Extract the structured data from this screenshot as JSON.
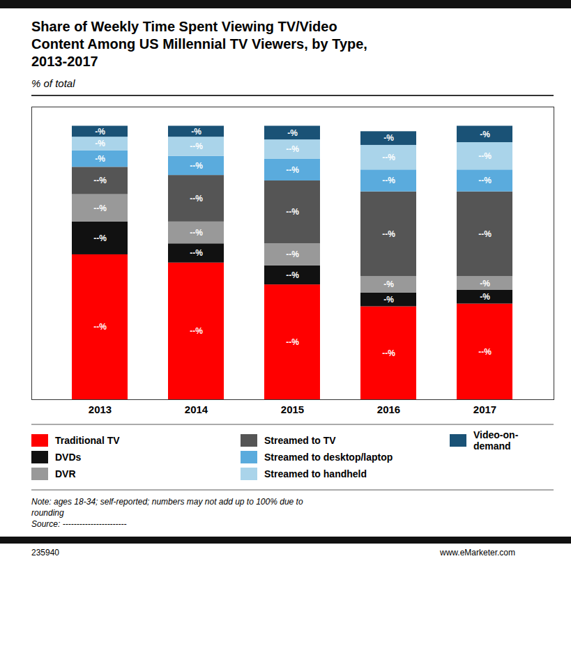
{
  "chart_data": {
    "type": "bar",
    "stacked": true,
    "title": "Share of Weekly Time Spent Viewing TV/Video\nContent Among US Millennial TV Viewers, by Type,\n2013-2017",
    "subtitle": "% of total",
    "categories": [
      "2013",
      "2014",
      "2015",
      "2016",
      "2017"
    ],
    "series": [
      {
        "name": "Traditional TV",
        "color": "#ff0000",
        "values": [
          53,
          50,
          42,
          34,
          35
        ],
        "value_labels": [
          "--%",
          "--%",
          "--%",
          "--%",
          "--%"
        ]
      },
      {
        "name": "DVDs",
        "color": "#111111",
        "values": [
          12,
          7,
          7,
          5,
          5
        ],
        "value_labels": [
          "--%",
          "--%",
          "--%",
          "-%",
          "-%"
        ]
      },
      {
        "name": "DVR",
        "color": "#999999",
        "values": [
          10,
          8,
          8,
          6,
          5
        ],
        "value_labels": [
          "--%",
          "--%",
          "--%",
          "-%",
          "-%"
        ]
      },
      {
        "name": "Streamed to TV",
        "color": "#555555",
        "values": [
          10,
          17,
          23,
          31,
          31
        ],
        "value_labels": [
          "--%",
          "--%",
          "--%",
          "--%",
          "--%"
        ]
      },
      {
        "name": "Streamed to desktop/laptop",
        "color": "#5aabdd",
        "values": [
          6,
          7,
          8,
          8,
          8
        ],
        "value_labels": [
          "-%",
          "--%",
          "--%",
          "--%",
          "--%"
        ]
      },
      {
        "name": "Streamed to handheld",
        "color": "#aad4ea",
        "values": [
          5,
          7,
          7,
          9,
          10
        ],
        "value_labels": [
          "-%",
          "--%",
          "--%",
          "--%",
          "--%"
        ]
      },
      {
        "name": "Video-on-demand",
        "color": "#1a5276",
        "values": [
          4,
          4,
          5,
          5,
          6
        ],
        "value_labels": [
          "-%",
          "-%",
          "-%",
          "-%",
          "-%"
        ]
      }
    ],
    "ylim": [
      0,
      107
    ],
    "data_labels": true,
    "tick_labels": "x",
    "legend": "bottom",
    "annotations": [
      "Note: ages 18-34; self-reported; numbers may not add up to 100% due to",
      "rounding",
      "Source: -----------------------",
      "235940",
      "www.eMarketer.com"
    ]
  }
}
